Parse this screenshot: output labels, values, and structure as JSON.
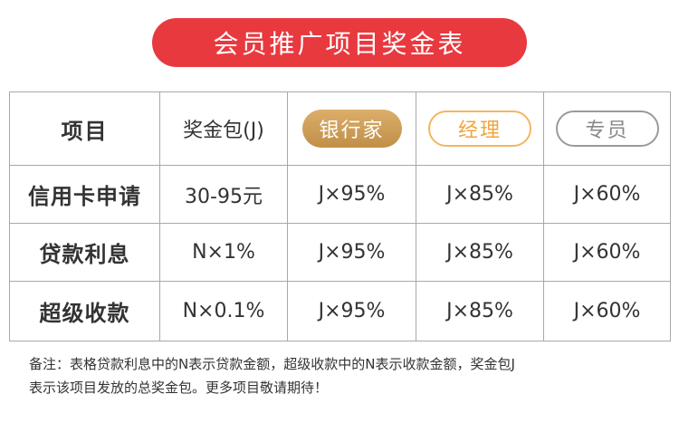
{
  "title": "会员推广项目奖金表",
  "colors": {
    "title_bg": "#e8393f",
    "gold_badge": "#c99a52",
    "orange_badge": "#f3b65d",
    "gray_badge": "#9a9a9a"
  },
  "table": {
    "headers": {
      "item": "项目",
      "bonus": "奖金包(J)",
      "tier_silver": "银行家",
      "tier_manager": "经理",
      "tier_specialist": "专员"
    },
    "rows": [
      {
        "label": "信用卡申请",
        "bonus": "30-95元",
        "silver": "J×95%",
        "manager": "J×85%",
        "specialist": "J×60%"
      },
      {
        "label": "贷款利息",
        "bonus": "N×1%",
        "silver": "J×95%",
        "manager": "J×85%",
        "specialist": "J×60%"
      },
      {
        "label": "超级收款",
        "bonus": "N×0.1%",
        "silver": "J×95%",
        "manager": "J×85%",
        "specialist": "J×60%"
      }
    ]
  },
  "note": {
    "line1": "备注：表格贷款利息中的N表示贷款金额，超级收款中的N表示收款金额，奖金包J",
    "line2": "表示该项目发放的总奖金包。更多项目敬请期待！"
  }
}
